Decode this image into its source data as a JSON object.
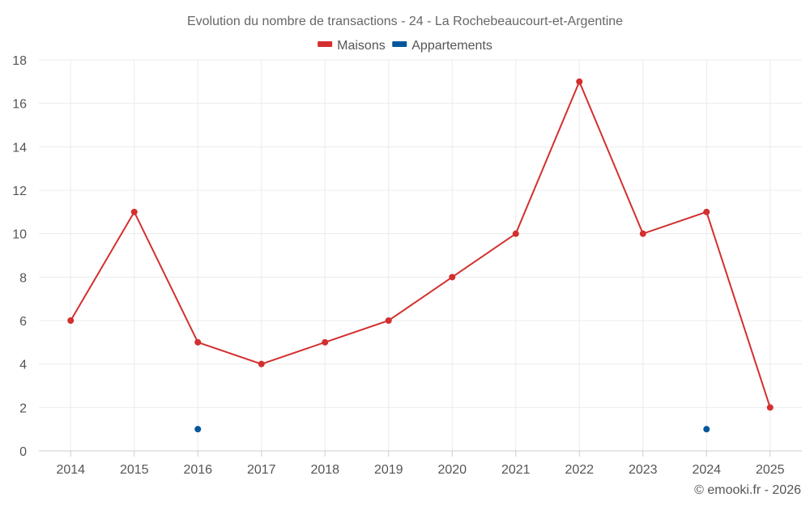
{
  "chart_data": {
    "type": "line",
    "title": "Evolution du nombre de transactions - 24 - La Rochebeaucourt-et-Argentine",
    "categories": [
      "2014",
      "2015",
      "2016",
      "2017",
      "2018",
      "2019",
      "2020",
      "2021",
      "2022",
      "2023",
      "2024",
      "2025"
    ],
    "series": [
      {
        "name": "Maisons",
        "color": "#d32f2f",
        "values": [
          6,
          11,
          5,
          4,
          5,
          6,
          8,
          10,
          17,
          10,
          11,
          2
        ]
      },
      {
        "name": "Appartements",
        "color": "#01579b",
        "values": [
          null,
          null,
          1,
          null,
          null,
          null,
          null,
          null,
          null,
          null,
          1,
          null
        ]
      }
    ],
    "ylim": [
      0,
      18
    ],
    "yticks": [
      "0",
      "2",
      "4",
      "6",
      "8",
      "10",
      "12",
      "14",
      "16",
      "18"
    ],
    "xlabel": "",
    "ylabel": "",
    "grid": true,
    "legend_position": "top-center"
  },
  "credit": "© emooki.fr - 2026"
}
